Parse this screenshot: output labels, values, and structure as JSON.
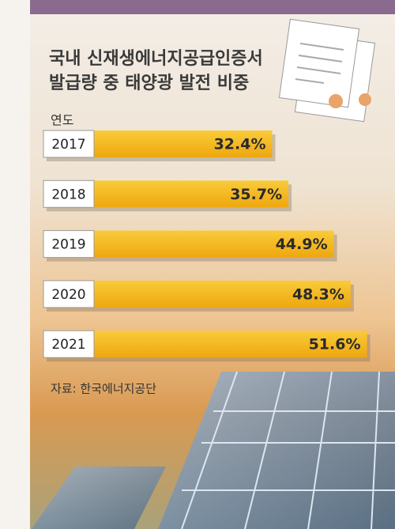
{
  "chart_data": {
    "type": "bar",
    "title": [
      "국내 신재생에너지공급인증서",
      "발급량 중 태양광 발전 비중"
    ],
    "axis_label": "연도",
    "categories": [
      "2017",
      "2018",
      "2019",
      "2020",
      "2021"
    ],
    "values": [
      32.4,
      35.7,
      44.9,
      48.3,
      51.6
    ],
    "value_labels": [
      "32.4%",
      "35.7%",
      "44.9%",
      "48.3%",
      "51.6%"
    ],
    "color": "#f4b41a",
    "source": "자료: 한국에너지공단"
  }
}
